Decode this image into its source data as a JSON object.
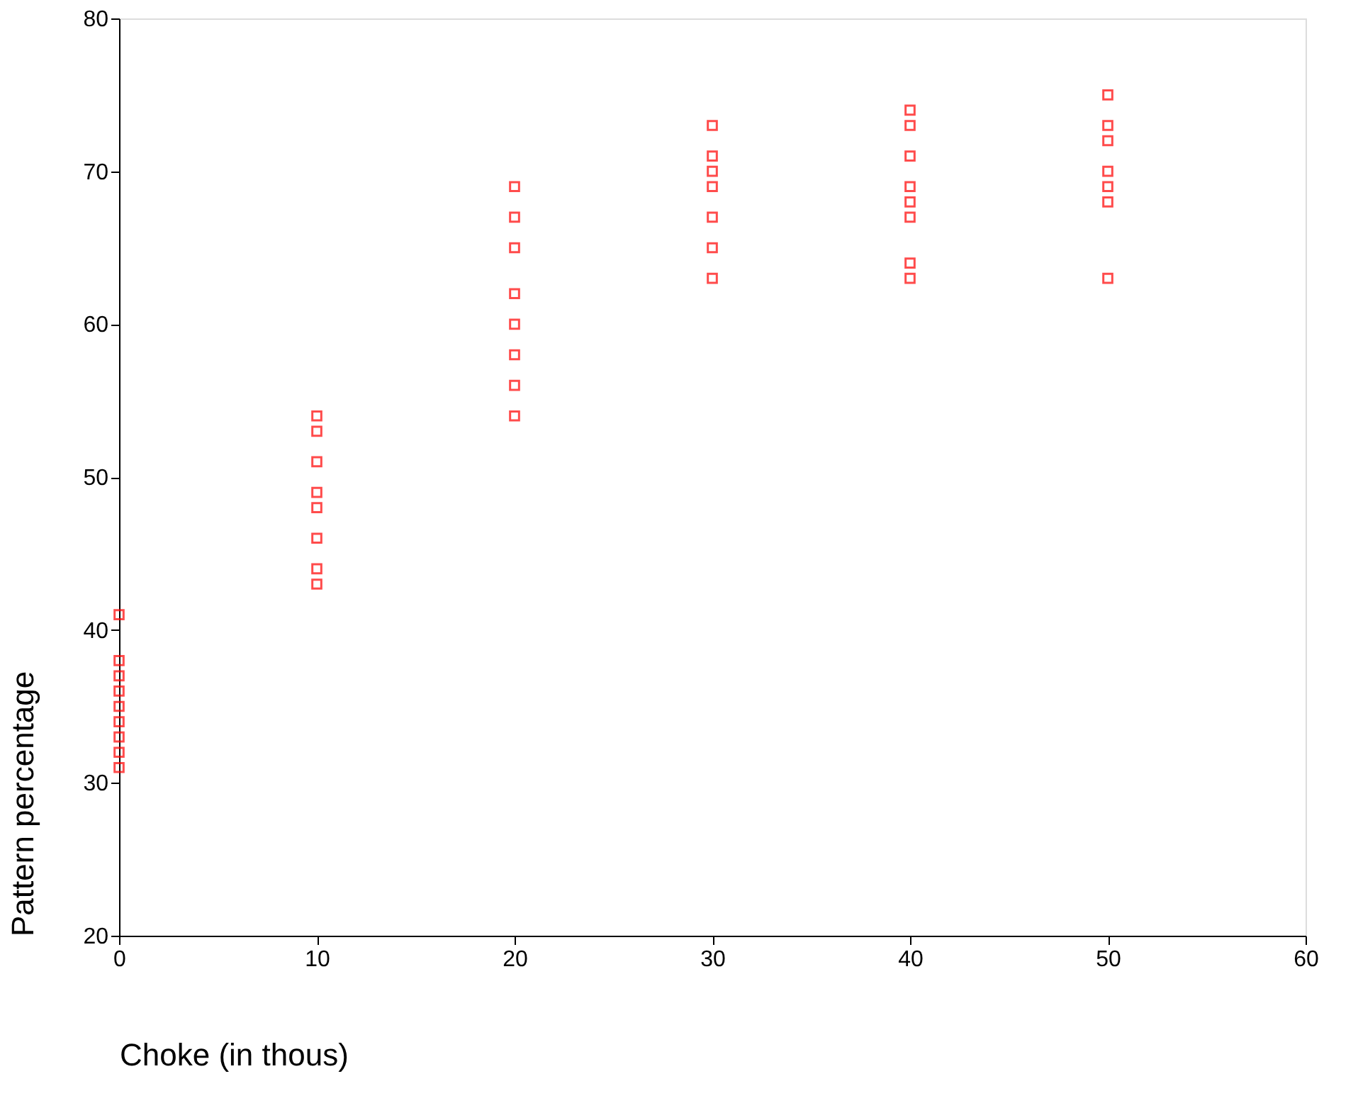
{
  "chart_data": {
    "type": "scatter",
    "xlabel": "Choke (in thous)",
    "ylabel": "Pattern percentage",
    "series": [
      {
        "color": "#ff0000",
        "x": [
          0,
          0,
          0,
          0,
          0,
          0,
          0,
          0,
          0,
          10,
          10,
          10,
          10,
          10,
          10,
          10,
          10,
          20,
          20,
          20,
          20,
          20,
          20,
          20,
          20,
          30,
          30,
          30,
          30,
          30,
          30,
          30,
          40,
          40,
          40,
          40,
          40,
          40,
          40,
          40,
          50,
          50,
          50,
          50,
          50,
          50,
          50
        ],
        "values": [
          41,
          38,
          37,
          36,
          35,
          34,
          33,
          32,
          31,
          54,
          53,
          51,
          49,
          48,
          46,
          44,
          43,
          69,
          67,
          65,
          62,
          60,
          58,
          56,
          54,
          73,
          71,
          70,
          69,
          67,
          65,
          63,
          74,
          73,
          71,
          69,
          68,
          67,
          64,
          63,
          75,
          73,
          72,
          70,
          69,
          68,
          63
        ]
      }
    ],
    "xlim": [
      0,
      60
    ],
    "xticks": [
      0,
      10,
      20,
      30,
      40,
      50,
      60
    ],
    "ylim": [
      20,
      80
    ],
    "yticks": [
      20,
      30,
      40,
      50,
      60,
      70,
      80
    ],
    "marker": "square",
    "grid": false,
    "legend": false
  }
}
